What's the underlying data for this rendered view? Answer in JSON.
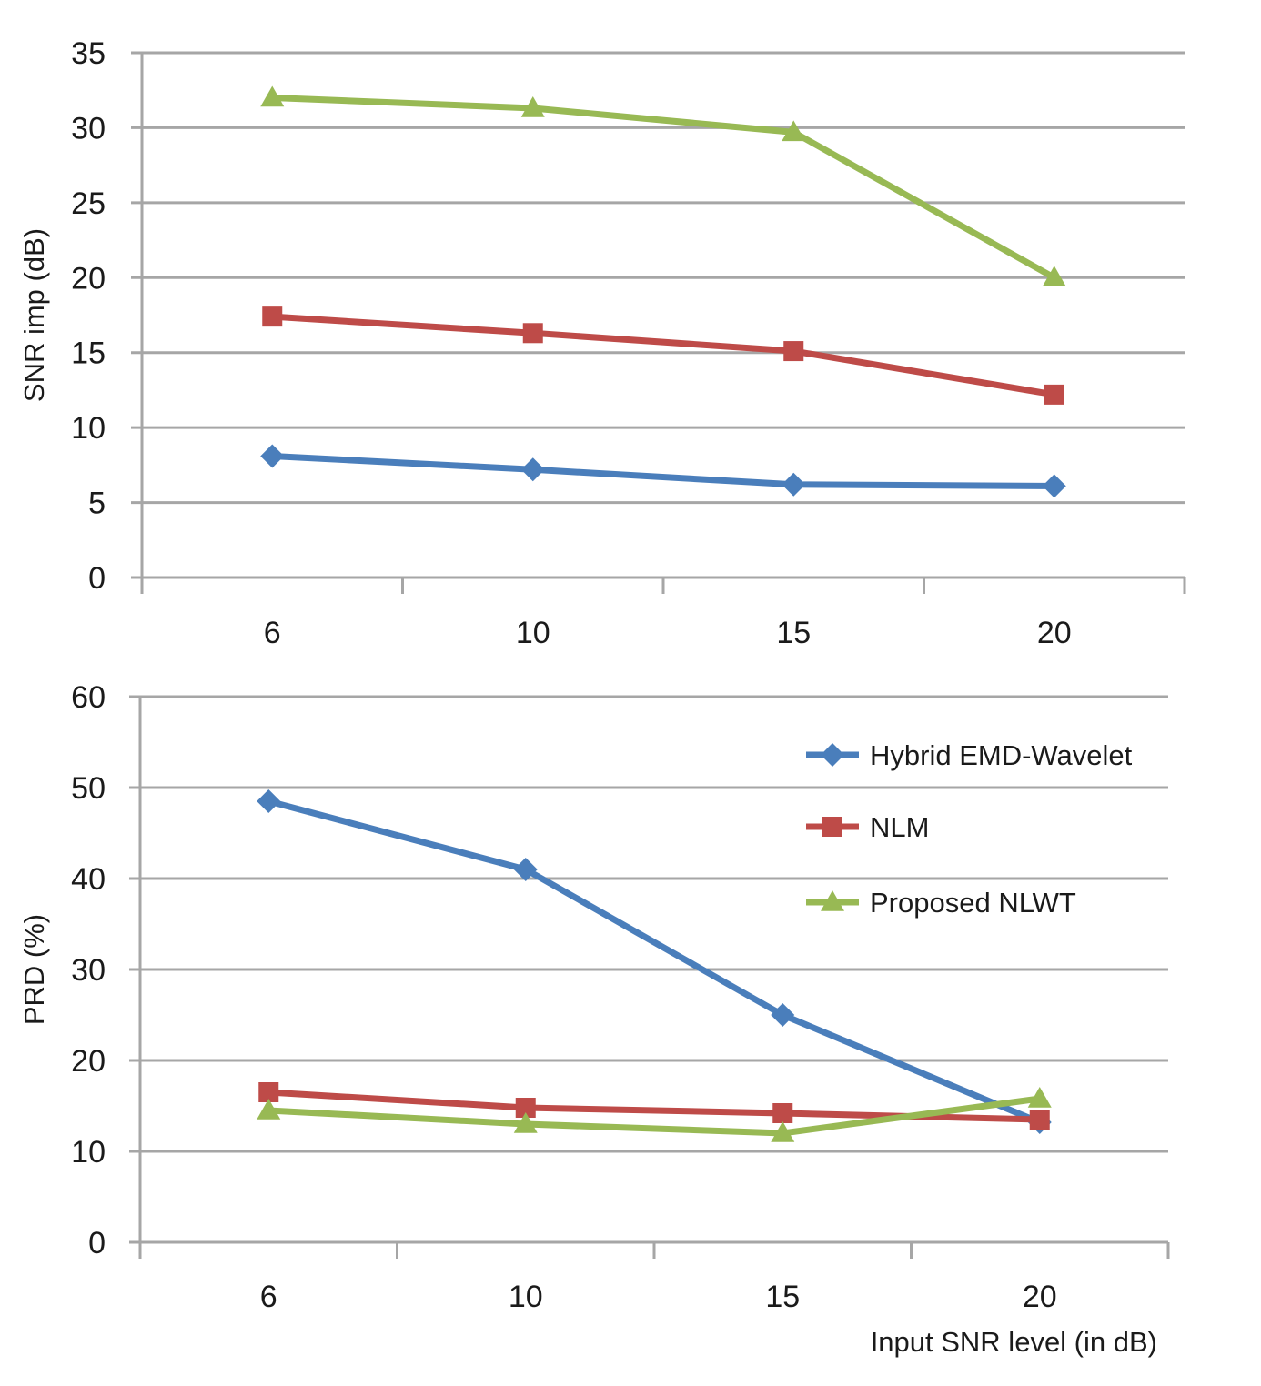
{
  "chart_data": [
    {
      "type": "line",
      "title": "",
      "xlabel": "",
      "ylabel": "SNR imp (dB)",
      "categories": [
        "6",
        "10",
        "15",
        "20"
      ],
      "ylim": [
        0,
        35
      ],
      "yticks": [
        "0",
        "5",
        "10",
        "15",
        "20",
        "25",
        "30",
        "35"
      ],
      "grid": true,
      "series": [
        {
          "name": "Hybrid EMD-Wavelet",
          "color": "#4a7ebb",
          "marker": "diamond",
          "values": [
            8.1,
            7.2,
            6.2,
            6.1
          ]
        },
        {
          "name": "NLM",
          "color": "#be4b48",
          "marker": "square",
          "values": [
            17.4,
            16.3,
            15.1,
            12.2
          ]
        },
        {
          "name": "Proposed NLWT",
          "color": "#98b954",
          "marker": "triangle",
          "values": [
            32.0,
            31.3,
            29.7,
            20.0
          ]
        }
      ]
    },
    {
      "type": "line",
      "title": "",
      "xlabel": "Input SNR level (in dB)",
      "ylabel": "PRD (%)",
      "categories": [
        "6",
        "10",
        "15",
        "20"
      ],
      "ylim": [
        0,
        60
      ],
      "yticks": [
        "0",
        "10",
        "20",
        "30",
        "40",
        "50",
        "60"
      ],
      "grid": true,
      "legend": "right",
      "series": [
        {
          "name": "Hybrid EMD-Wavelet",
          "color": "#4a7ebb",
          "marker": "diamond",
          "values": [
            48.5,
            41.0,
            25.0,
            13.2
          ]
        },
        {
          "name": "NLM",
          "color": "#be4b48",
          "marker": "square",
          "values": [
            16.5,
            14.8,
            14.2,
            13.5
          ]
        },
        {
          "name": "Proposed NLWT",
          "color": "#98b954",
          "marker": "triangle",
          "values": [
            14.5,
            13.0,
            12.0,
            15.8
          ]
        }
      ]
    }
  ]
}
